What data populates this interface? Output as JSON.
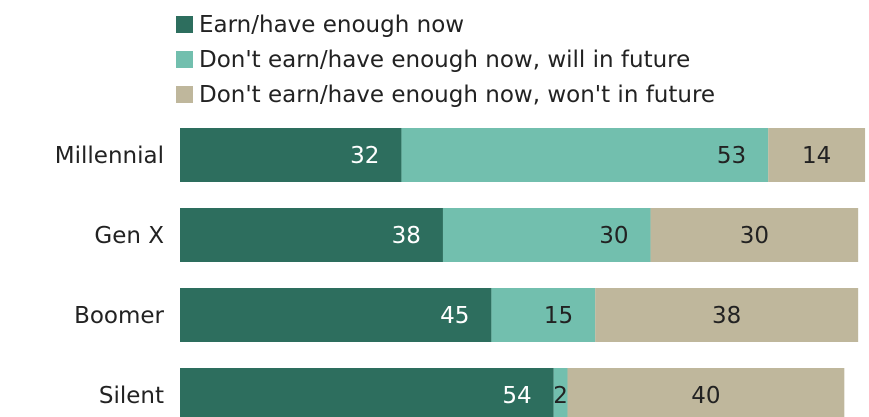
{
  "chart_data": {
    "type": "bar",
    "orientation": "horizontal",
    "stacked": true,
    "categories": [
      "Millennial",
      "Gen X",
      "Boomer",
      "Silent"
    ],
    "series": [
      {
        "name": "Earn/have enough now",
        "values": [
          32,
          38,
          45,
          54
        ],
        "color": "#2d6e5e"
      },
      {
        "name": "Don't earn/have enough now, will in future",
        "values": [
          53,
          30,
          15,
          2
        ],
        "color": "#72bfae"
      },
      {
        "name": "Don't earn/have enough now, won't in future",
        "values": [
          14,
          30,
          38,
          40
        ],
        "color": "#bfb79c"
      }
    ],
    "legend_position": "top",
    "grid": false,
    "xlim": [
      0,
      100
    ]
  }
}
